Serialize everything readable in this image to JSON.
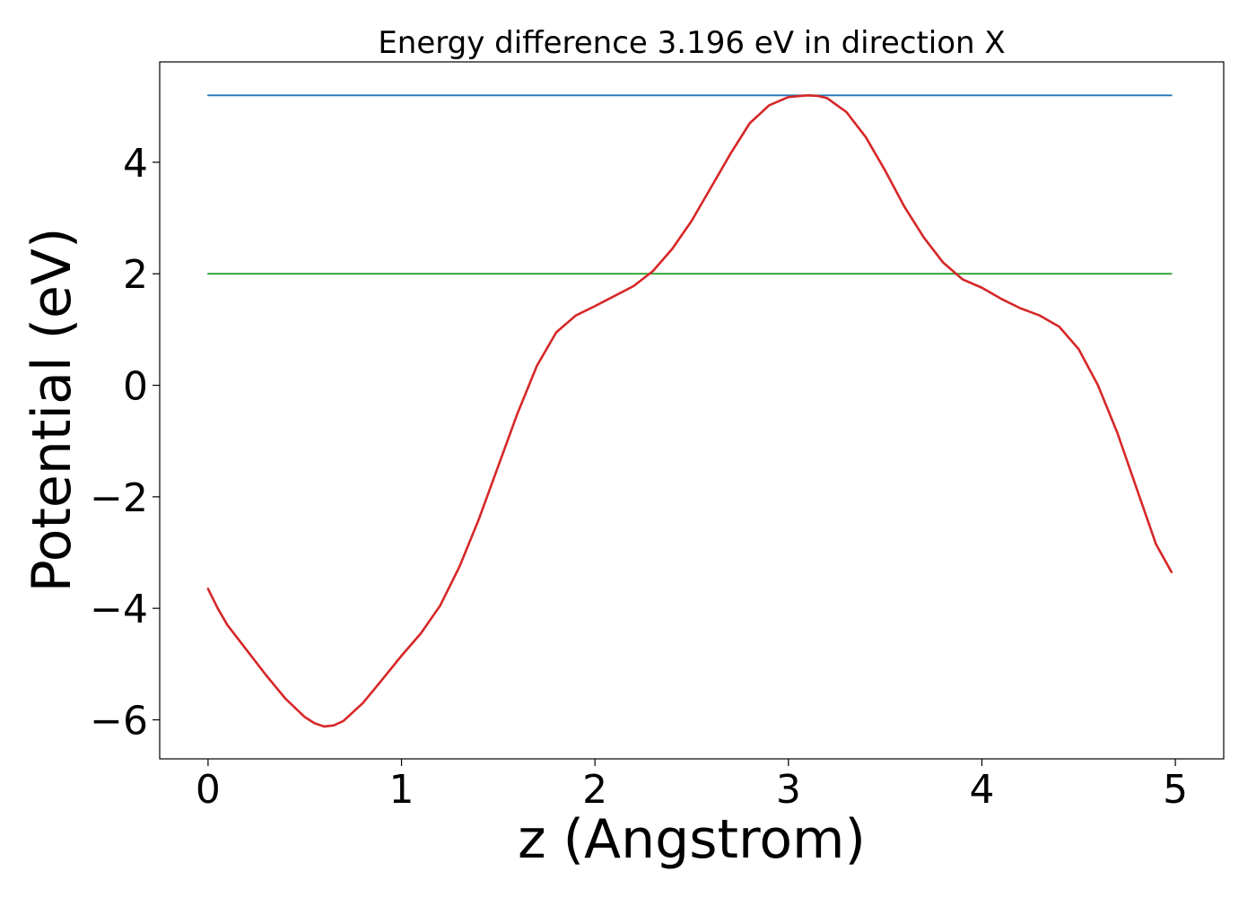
{
  "chart_data": {
    "type": "line",
    "title": "Energy difference 3.196 eV in direction X",
    "xlabel": "z (Angstrom)",
    "ylabel": "Potential (eV)",
    "xlim": [
      -0.25,
      5.25
    ],
    "ylim": [
      -6.7,
      5.8
    ],
    "xticks": [
      0,
      1,
      2,
      3,
      4,
      5
    ],
    "xtick_labels": [
      "0",
      "1",
      "2",
      "3",
      "4",
      "5"
    ],
    "yticks": [
      -6,
      -4,
      -2,
      0,
      2,
      4
    ],
    "ytick_labels": [
      "−6",
      "−4",
      "−2",
      "0",
      "2",
      "4"
    ],
    "grid": false,
    "legend": "none",
    "series": [
      {
        "color": "#d62728",
        "x": [
          0,
          0.05,
          0.1,
          0.2,
          0.3,
          0.4,
          0.5,
          0.55,
          0.6,
          0.65,
          0.7,
          0.8,
          0.9,
          1.0,
          1.1,
          1.2,
          1.3,
          1.4,
          1.5,
          1.6,
          1.7,
          1.8,
          1.9,
          2.0,
          2.1,
          2.2,
          2.3,
          2.4,
          2.5,
          2.6,
          2.7,
          2.8,
          2.9,
          3.0,
          3.1,
          3.15,
          3.2,
          3.3,
          3.4,
          3.5,
          3.6,
          3.7,
          3.8,
          3.9,
          4.0,
          4.1,
          4.2,
          4.3,
          4.4,
          4.5,
          4.6,
          4.7,
          4.8,
          4.9,
          4.98
        ],
        "y": [
          -3.65,
          -4.0,
          -4.3,
          -4.75,
          -5.2,
          -5.62,
          -5.95,
          -6.06,
          -6.12,
          -6.1,
          -6.02,
          -5.7,
          -5.28,
          -4.85,
          -4.45,
          -3.95,
          -3.25,
          -2.4,
          -1.45,
          -0.5,
          0.35,
          0.95,
          1.25,
          1.42,
          1.6,
          1.78,
          2.05,
          2.45,
          2.95,
          3.55,
          4.15,
          4.7,
          5.02,
          5.17,
          5.2,
          5.19,
          5.15,
          4.9,
          4.45,
          3.85,
          3.2,
          2.65,
          2.2,
          1.9,
          1.75,
          1.55,
          1.38,
          1.25,
          1.05,
          0.65,
          0.0,
          -0.85,
          -1.85,
          -2.85,
          -3.35
        ]
      },
      {
        "color": "#1f77b4",
        "x": [
          0,
          4.98
        ],
        "y": [
          5.2,
          5.2
        ]
      },
      {
        "color": "#2ca02c",
        "x": [
          0,
          4.98
        ],
        "y": [
          2.0,
          2.0
        ]
      }
    ]
  }
}
